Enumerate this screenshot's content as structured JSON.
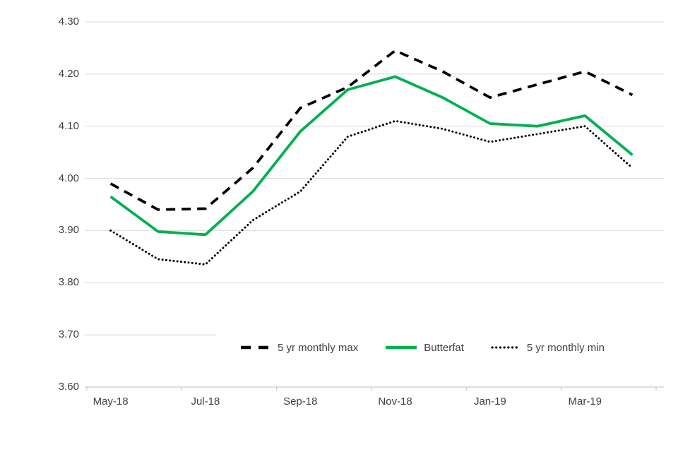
{
  "chart_data": {
    "type": "line",
    "title": "",
    "xlabel": "",
    "ylabel": "",
    "x": [
      "May-18",
      "Jun-18",
      "Jul-18",
      "Aug-18",
      "Sep-18",
      "Oct-18",
      "Nov-18",
      "Dec-18",
      "Jan-19",
      "Feb-19",
      "Mar-19",
      "Apr-19"
    ],
    "x_tick_labels": [
      "May-18",
      "Jul-18",
      "Sep-18",
      "Nov-18",
      "Jan-19",
      "Mar-19"
    ],
    "x_tick_label_every": 2,
    "series": [
      {
        "name": "5 yr monthly max",
        "style": "dashed",
        "color": "#000000",
        "values": [
          3.99,
          3.94,
          3.942,
          4.02,
          4.135,
          4.175,
          4.245,
          4.205,
          4.155,
          4.18,
          4.205,
          4.16
        ]
      },
      {
        "name": "Butterfat",
        "style": "solid",
        "color": "#00B050",
        "values": [
          3.965,
          3.898,
          3.892,
          3.975,
          4.09,
          4.17,
          4.195,
          4.155,
          4.105,
          4.1,
          4.12,
          4.045
        ]
      },
      {
        "name": "5 yr monthly min",
        "style": "dotted",
        "color": "#000000",
        "values": [
          3.9,
          3.845,
          3.835,
          3.92,
          3.975,
          4.08,
          4.11,
          4.095,
          4.07,
          4.085,
          4.1,
          4.02
        ]
      }
    ],
    "ylim": [
      3.6,
      4.3
    ],
    "y_ticks": [
      4.3,
      4.2,
      4.1,
      4.0,
      3.9,
      3.8,
      3.7,
      3.6
    ],
    "y_tick_format_decimals": 2,
    "grid": true,
    "legend_position": "bottom-inside"
  },
  "colors": {
    "background": "#ffffff",
    "gridline": "#d9d9d9",
    "axis_line": "#bfbfbf",
    "text": "#404040",
    "butterfat_green": "#00B050",
    "min_max_black": "#000000"
  }
}
